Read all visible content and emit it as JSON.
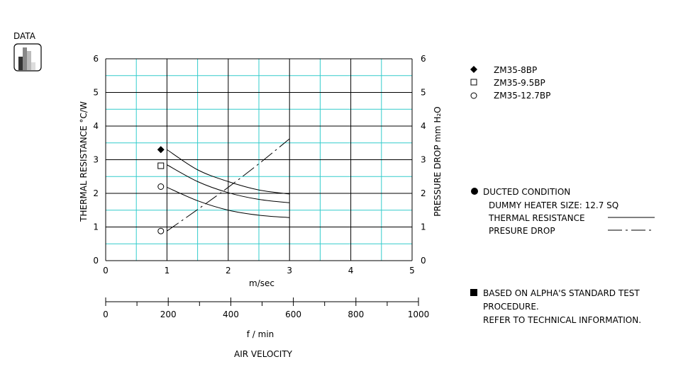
{
  "header": {
    "data_label": "DATA",
    "data_icon": "bar-chart-icon"
  },
  "chart_data": {
    "type": "line",
    "x_unit": "m/sec",
    "xlim": [
      0,
      5
    ],
    "x_ticks": [
      "0",
      "1",
      "2",
      "3",
      "4",
      "5"
    ],
    "x2_unit": "f / min",
    "x2lim": [
      0,
      1000
    ],
    "x2_ticks": [
      "0",
      "200",
      "400",
      "600",
      "800",
      "1000"
    ],
    "xlabel": "AIR VELOCITY",
    "ylabel_left": "THERMAL  RESISTANCE    °C/W",
    "ylabel_right": "PRESSURE  DROP    mm H₂O",
    "ylim": [
      0,
      6
    ],
    "y_ticks": [
      "0",
      "1",
      "2",
      "3",
      "4",
      "5",
      "6"
    ],
    "grid_colors": {
      "minor": "#33cccc",
      "major": "#000000"
    },
    "series": [
      {
        "name": "ZM35-8BP",
        "marker": "diamond",
        "marker_point": [
          0.9,
          3.3
        ],
        "x": [
          1.0,
          1.5,
          2.0,
          2.5,
          3.0
        ],
        "values": [
          3.3,
          2.7,
          2.35,
          2.1,
          1.98
        ]
      },
      {
        "name": "ZM35-9.5BP",
        "marker": "square",
        "marker_point": [
          0.9,
          2.82
        ],
        "x": [
          1.0,
          1.5,
          2.0,
          2.5,
          3.0
        ],
        "values": [
          2.85,
          2.35,
          2.02,
          1.82,
          1.72
        ]
      },
      {
        "name": "ZM35-12.7BP",
        "marker": "circle",
        "marker_point": [
          0.9,
          2.2
        ],
        "x": [
          1.0,
          1.5,
          2.0,
          2.5,
          3.0
        ],
        "values": [
          2.18,
          1.78,
          1.5,
          1.35,
          1.28
        ]
      }
    ],
    "pressure_drop": {
      "marker": "circle",
      "marker_point": [
        0.9,
        0.88
      ],
      "x": [
        1.0,
        1.5,
        2.0,
        2.5,
        3.0
      ],
      "values": [
        0.88,
        1.52,
        2.18,
        2.88,
        3.62
      ]
    }
  },
  "notes": {
    "ducted_title": "DUCTED CONDITION",
    "dummy_heater": "DUMMY HEATER SIZE: 12.7 SQ",
    "thermal_resistance": "THERMAL RESISTANCE",
    "pressure_drop": "PRESURE DROP",
    "based_on_line1": "BASED ON ALPHA'S STANDARD TEST",
    "based_on_line2": "PROCEDURE.",
    "based_on_line3": "REFER TO TECHNICAL INFORMATION."
  }
}
